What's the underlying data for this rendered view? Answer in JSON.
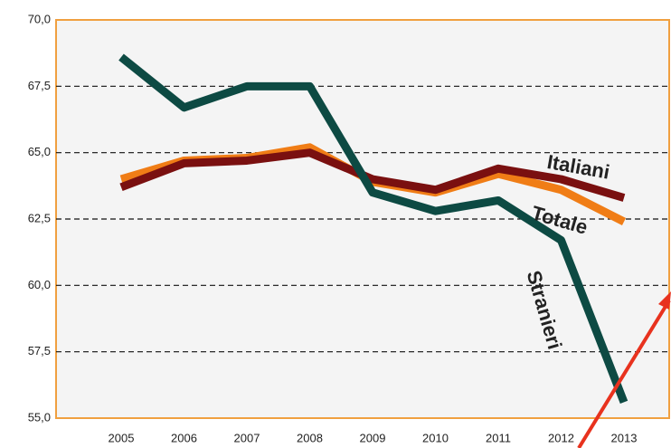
{
  "chart_data": {
    "type": "line",
    "categories": [
      "2005",
      "2006",
      "2007",
      "2008",
      "2009",
      "2010",
      "2011",
      "2012",
      "2013"
    ],
    "series": [
      {
        "name": "Totale",
        "color": "#f07d16",
        "values": [
          64.0,
          64.7,
          64.8,
          65.2,
          63.9,
          63.5,
          64.2,
          63.6,
          62.4
        ]
      },
      {
        "name": "Italiani",
        "color": "#7a1010",
        "values": [
          63.7,
          64.6,
          64.7,
          65.0,
          64.0,
          63.6,
          64.4,
          64.0,
          63.3
        ]
      },
      {
        "name": "Stranieri",
        "color": "#0d4a43",
        "values": [
          68.6,
          66.7,
          67.5,
          67.5,
          63.5,
          62.8,
          63.2,
          61.7,
          55.6
        ]
      }
    ],
    "ylim": [
      55,
      70
    ],
    "yticks": [
      {
        "value": 55,
        "label": "55,0"
      },
      {
        "value": 57.5,
        "label": "57,5"
      },
      {
        "value": 60,
        "label": "60,0"
      },
      {
        "value": 62.5,
        "label": "62,5"
      },
      {
        "value": 65,
        "label": "65,0"
      },
      {
        "value": 67.5,
        "label": "67,5"
      },
      {
        "value": 70,
        "label": "70,0"
      }
    ],
    "grid": true
  }
}
